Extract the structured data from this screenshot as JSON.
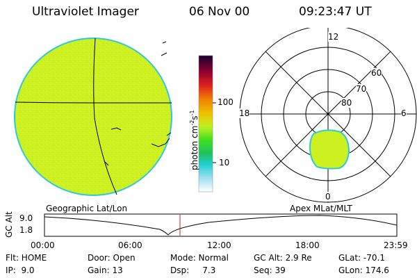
{
  "header": {
    "title": "Ultraviolet Imager",
    "date": "06 Nov 00",
    "time": "09:23:47 UT"
  },
  "colorbar": {
    "unit_label": "photon cm",
    "unit_exp1": "-2",
    "unit_mid": "s",
    "unit_exp2": "-1",
    "tick_high": "100",
    "tick_low": "10"
  },
  "polar_plot": {
    "mlt_labels": [
      "12",
      "18",
      "6",
      "0"
    ],
    "lat_labels": [
      "60",
      "70",
      "80"
    ]
  },
  "panel_labels": {
    "left": "Geographic Lat/Lon",
    "right": "Apex MLat/MLT"
  },
  "altitude_strip": {
    "ylabel": "GC Alt",
    "y_high": "9.0",
    "y_low": "1.8",
    "x_ticks": [
      "00:00",
      "06:00",
      "12:00",
      "18:00",
      "23:59"
    ]
  },
  "info": {
    "flt": "Flt: HOME",
    "ip": "IP:  9.0",
    "door": "Door: Open",
    "gain": "Gain: 13",
    "mode": "Mode: Normal",
    "dsp": "Dsp:     7.3",
    "gcalt": "GC Alt: 2.9 Re",
    "seq": "Seq: 39",
    "glat": "GLat: -70.1",
    "glon": "GLon: 174.6"
  },
  "colors": {
    "image_fill": "#ccf020",
    "image_edge": "#30c8e0",
    "marker": "#c02020"
  }
}
